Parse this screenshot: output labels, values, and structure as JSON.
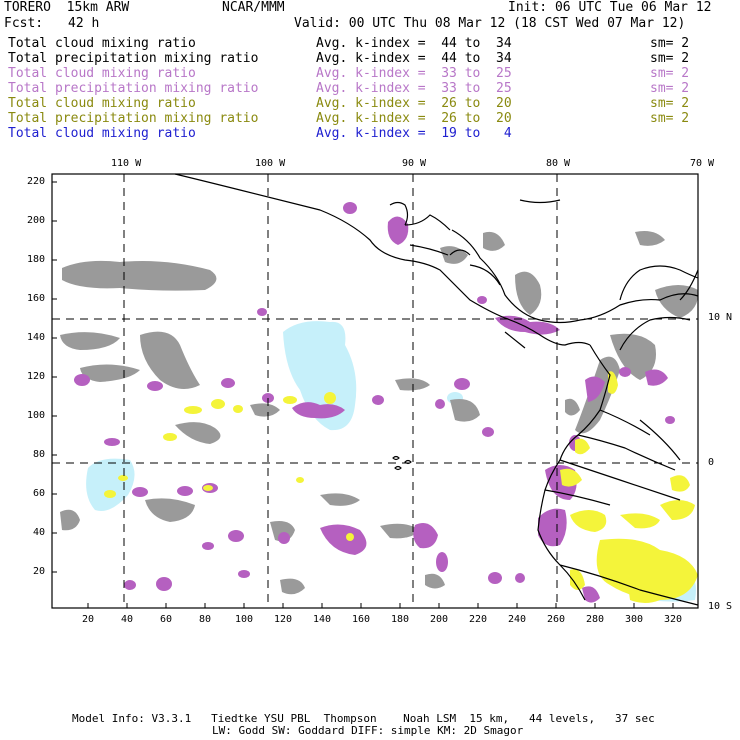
{
  "header": {
    "model": "TORERO  15km ARW",
    "center": "NCAR/MMM",
    "init": "Init: 06 UTC Tue 06 Mar 12",
    "fcst_label": "Fcst:",
    "fcst_value": "42 h",
    "valid": "Valid: 00 UTC Thu 08 Mar 12 (18 CST Wed 07 Mar 12)"
  },
  "legend": [
    {
      "field": "Total cloud mixing ratio",
      "kindex": "Avg. k-index =  44 to  34",
      "sm": "sm= 2",
      "color": "#000000"
    },
    {
      "field": "Total precipitation mixing ratio",
      "kindex": "Avg. k-index =  44 to  34",
      "sm": "sm= 2",
      "color": "#000000"
    },
    {
      "field": "Total cloud mixing ratio",
      "kindex": "Avg. k-index =  33 to  25",
      "sm": "sm= 2",
      "color": "#b877c8"
    },
    {
      "field": "Total precipitation mixing ratio",
      "kindex": "Avg. k-index =  33 to  25",
      "sm": "sm= 2",
      "color": "#b877c8"
    },
    {
      "field": "Total cloud mixing ratio",
      "kindex": "Avg. k-index =  26 to  20",
      "sm": "sm= 2",
      "color": "#8a8a10"
    },
    {
      "field": "Total precipitation mixing ratio",
      "kindex": "Avg. k-index =  26 to  20",
      "sm": "sm= 2",
      "color": "#8a8a10"
    },
    {
      "field": "Total cloud mixing ratio",
      "kindex": "Avg. k-index =  19 to   4",
      "sm": "",
      "color": "#2020d0"
    }
  ],
  "map": {
    "lon_labels": [
      "110 W",
      "100 W",
      "90 W",
      "80 W",
      "70 W"
    ],
    "lat_labels": [
      "10 N",
      "0",
      "10 S"
    ],
    "y_ticks": [
      "220",
      "200",
      "180",
      "160",
      "140",
      "120",
      "100",
      "80",
      "60",
      "40",
      "20"
    ],
    "x_ticks": [
      "20",
      "40",
      "60",
      "80",
      "100",
      "120",
      "140",
      "160",
      "180",
      "200",
      "220",
      "240",
      "260",
      "280",
      "300",
      "320"
    ],
    "colors": {
      "gray": "#9a9a9a",
      "purple": "#b560c0",
      "yellow": "#f4f43a",
      "lightblue": "#c6f0fa",
      "coast": "#000000"
    }
  },
  "footer": {
    "line1": "Model Info: V3.3.1   Tiedtke YSU PBL  Thompson    Noah LSM  15 km,   44 levels,   37 sec",
    "line2": "LW: Godd SW: Goddard DIFF: simple KM: 2D Smagor"
  }
}
